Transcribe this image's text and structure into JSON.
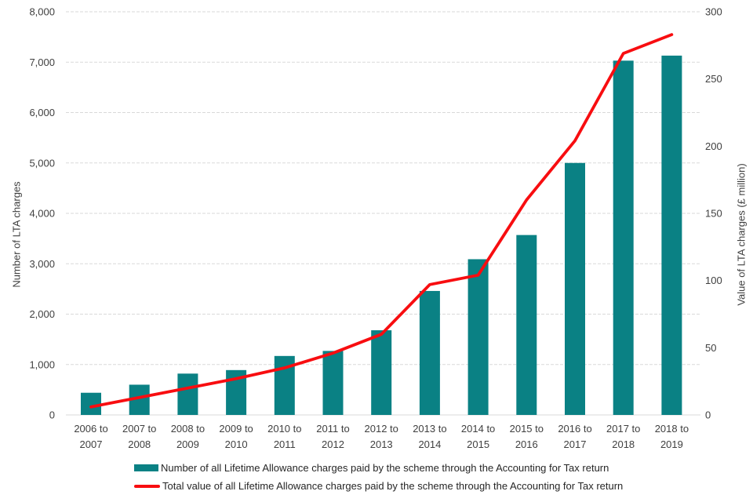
{
  "chart_data": {
    "type": "bar",
    "subtype": "combo-bar-line-dual-axis",
    "categories": [
      "2006 to 2007",
      "2007 to 2008",
      "2008 to 2009",
      "2009 to 2010",
      "2010 to 2011",
      "2011 to 2012",
      "2012 to 2013",
      "2013 to 2014",
      "2014 to 2015",
      "2015 to 2016",
      "2016 to 2017",
      "2017 to 2018",
      "2018 to 2019"
    ],
    "series": [
      {
        "name": "Number of all Lifetime Allowance charges paid by the scheme through the Accounting for Tax return",
        "type": "bar",
        "axis": "left",
        "color": "#0a8184",
        "values": [
          440,
          600,
          820,
          890,
          1170,
          1270,
          1680,
          2460,
          3090,
          3570,
          5000,
          7030,
          7130
        ]
      },
      {
        "name": "Total value of all Lifetime Allowance charges paid by the scheme through the Accounting for Tax return",
        "type": "line",
        "axis": "right",
        "color": "#f80d10",
        "values": [
          6,
          13,
          20,
          27,
          35,
          46,
          60,
          97,
          104,
          160,
          204,
          269,
          283
        ]
      }
    ],
    "left_axis": {
      "title": "Number of LTA charges",
      "min": 0,
      "max": 8000,
      "ticks": [
        0,
        1000,
        2000,
        3000,
        4000,
        5000,
        6000,
        7000,
        8000
      ],
      "tick_labels": [
        "0",
        "1,000",
        "2,000",
        "3,000",
        "4,000",
        "5,000",
        "6,000",
        "7,000",
        "8,000"
      ]
    },
    "right_axis": {
      "title": "Value of LTA charges (£ million)",
      "min": 0,
      "max": 300,
      "ticks": [
        0,
        50,
        100,
        150,
        200,
        250,
        300
      ],
      "tick_labels": [
        "0",
        "50",
        "100",
        "150",
        "200",
        "250",
        "300"
      ]
    },
    "grid": true,
    "legend_position": "bottom",
    "title": ""
  }
}
